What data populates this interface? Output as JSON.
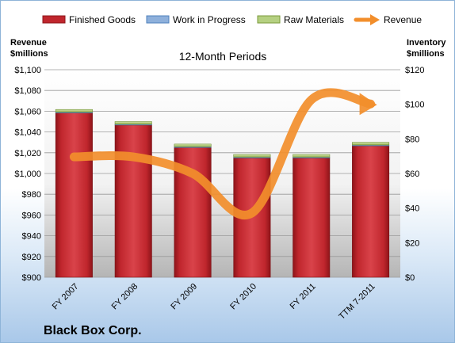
{
  "chart_data": {
    "type": "bar",
    "subtitle": "12-Month Periods",
    "company": "Black Box Corp.",
    "categories": [
      "FY 2007",
      "FY 2008",
      "FY 2009",
      "FY 2010",
      "FY 2011",
      "TTM 7-2011"
    ],
    "left_axis": {
      "label_line1": "Revenue",
      "label_line2": "$millions",
      "ylim": [
        900,
        1100
      ],
      "ticks": [
        "$900",
        "$920",
        "$940",
        "$960",
        "$980",
        "$1,000",
        "$1,020",
        "$1,040",
        "$1,060",
        "$1,080",
        "$1,100"
      ]
    },
    "right_axis": {
      "label_line1": "Inventory",
      "label_line2": "$millions",
      "ylim": [
        0,
        120
      ],
      "ticks": [
        "$0",
        "$20",
        "$40",
        "$60",
        "$80",
        "$100",
        "$120"
      ]
    },
    "series": [
      {
        "name": "Finished Goods",
        "axis": "right",
        "color": "#c0262d",
        "values": [
          95,
          88,
          75,
          69,
          69,
          76
        ]
      },
      {
        "name": "Work in Progress",
        "axis": "right",
        "color": "#4f81bd",
        "values": [
          0.5,
          0.5,
          0.5,
          0.5,
          0.5,
          0.5
        ]
      },
      {
        "name": "Raw Materials",
        "axis": "right",
        "color": "#9bbb59",
        "values": [
          1.5,
          1.5,
          1.5,
          1.5,
          1.5,
          1.5
        ]
      },
      {
        "name": "Revenue",
        "axis": "left",
        "type": "line",
        "color": "#f28e2b",
        "values": [
          1016,
          1016,
          1000,
          962,
          1071,
          1067
        ]
      }
    ],
    "grid": true,
    "legend_position": "top"
  }
}
